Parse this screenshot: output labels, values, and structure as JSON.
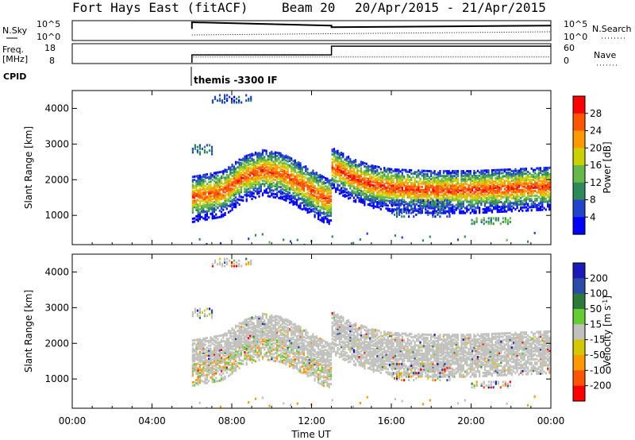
{
  "header": {
    "station": "Fort Hays East (fitACF)",
    "beam": "Beam 20",
    "date_range": "20/Apr/2015 - 21/Apr/2015"
  },
  "colors": {
    "power_scale": [
      "#0000ff",
      "#2244cc",
      "#2f8a5a",
      "#66b84a",
      "#ccd000",
      "#ff9900",
      "#ff5500",
      "#ff0000"
    ],
    "velocity_scale": [
      "#1a1ab8",
      "#2c4aa8",
      "#2c7a3a",
      "#66cc33",
      "#c0c0bc",
      "#d4c800",
      "#ff9900",
      "#ff5500",
      "#ff0000"
    ],
    "ground_scatter": "#c0c0bc"
  },
  "chart_data": [
    {
      "name": "status-panel",
      "type": "line",
      "rows": [
        {
          "left_label": "N.Sky",
          "left_ticks": [
            "10^5",
            "10^0"
          ],
          "right_label": "N.Search",
          "right_ticks": [
            "10^5",
            "10^0"
          ]
        },
        {
          "left_label": "Freq. [MHz]",
          "left_ticks": [
            "18",
            "8"
          ],
          "right_label": "Nave",
          "right_ticks": [
            "60",
            "0"
          ]
        }
      ],
      "cpid_label": "CPID",
      "program_name": "themis -3300 IF",
      "series": [
        {
          "name": "N.Sky",
          "x_hours": [
            6.0,
            6.0,
            13.0,
            13.0,
            24.0
          ],
          "values": [
            3,
            5,
            4,
            3.5,
            4
          ]
        },
        {
          "name": "Freq.",
          "x_hours": [
            6.0,
            6.0,
            13.0,
            13.0,
            24.0
          ],
          "values": [
            8,
            12.5,
            12.5,
            17.5,
            17.5
          ]
        },
        {
          "name": "Nave",
          "x_hours": [
            6.0,
            6.0,
            24.0
          ],
          "values": [
            0,
            20,
            20
          ]
        }
      ]
    },
    {
      "name": "power-panel",
      "type": "heatmap",
      "ylabel": "Slant Range [km]",
      "yticks": [
        1000,
        2000,
        3000,
        4000
      ],
      "ylim": [
        180,
        4500
      ],
      "colorbar": {
        "label": "Power [dB]",
        "ticks": [
          4,
          8,
          12,
          16,
          20,
          24,
          28
        ],
        "range": [
          0,
          30
        ]
      },
      "scatter_bands": [
        {
          "x_start": 6.0,
          "x_end": 13.0,
          "center_km": [
            [
              6.0,
              1550
            ],
            [
              7.5,
              1700
            ],
            [
              8.5,
              2100
            ],
            [
              9.5,
              2300
            ],
            [
              10.5,
              2200
            ],
            [
              11.5,
              1900
            ],
            [
              12.7,
              1500
            ]
          ],
          "width_km": 700,
          "peak_db": 26
        },
        {
          "x_start": 13.0,
          "x_end": 24.0,
          "center_km": [
            [
              13.0,
              2400
            ],
            [
              14.0,
              2100
            ],
            [
              15.0,
              1900
            ],
            [
              16.0,
              1800
            ],
            [
              18.0,
              1750
            ],
            [
              20.0,
              1750
            ],
            [
              22.0,
              1800
            ],
            [
              24.0,
              1850
            ]
          ],
          "width_km": 650,
          "peak_db": 27
        }
      ],
      "patches": [
        {
          "x": [
            6.0,
            7.0
          ],
          "km": [
            2750,
            3050
          ],
          "db": 8
        },
        {
          "x": [
            7.0,
            9.0
          ],
          "km": [
            4200,
            4450
          ],
          "db": 6
        },
        {
          "x": [
            20.0,
            22.0
          ],
          "km": [
            800,
            1000
          ],
          "db": 10
        },
        {
          "x": [
            16.0,
            19.0
          ],
          "km": [
            1000,
            1500
          ],
          "db": 6
        }
      ]
    },
    {
      "name": "velocity-panel",
      "type": "heatmap",
      "ylabel": "Slant Range [km]",
      "xlabel": "Time UT",
      "xticks": [
        "00:00",
        "04:00",
        "08:00",
        "12:00",
        "16:00",
        "20:00",
        "00:00"
      ],
      "xlim": [
        0,
        24
      ],
      "yticks": [
        1000,
        2000,
        3000,
        4000
      ],
      "ylim": [
        180,
        4500
      ],
      "colorbar": {
        "label": "Velocity [m s^-1]",
        "ticks": [
          200,
          100,
          50,
          15,
          -15,
          -50,
          -100,
          -200
        ]
      },
      "note": "mostly ground scatter (near-zero velocity) following the power bands"
    }
  ]
}
